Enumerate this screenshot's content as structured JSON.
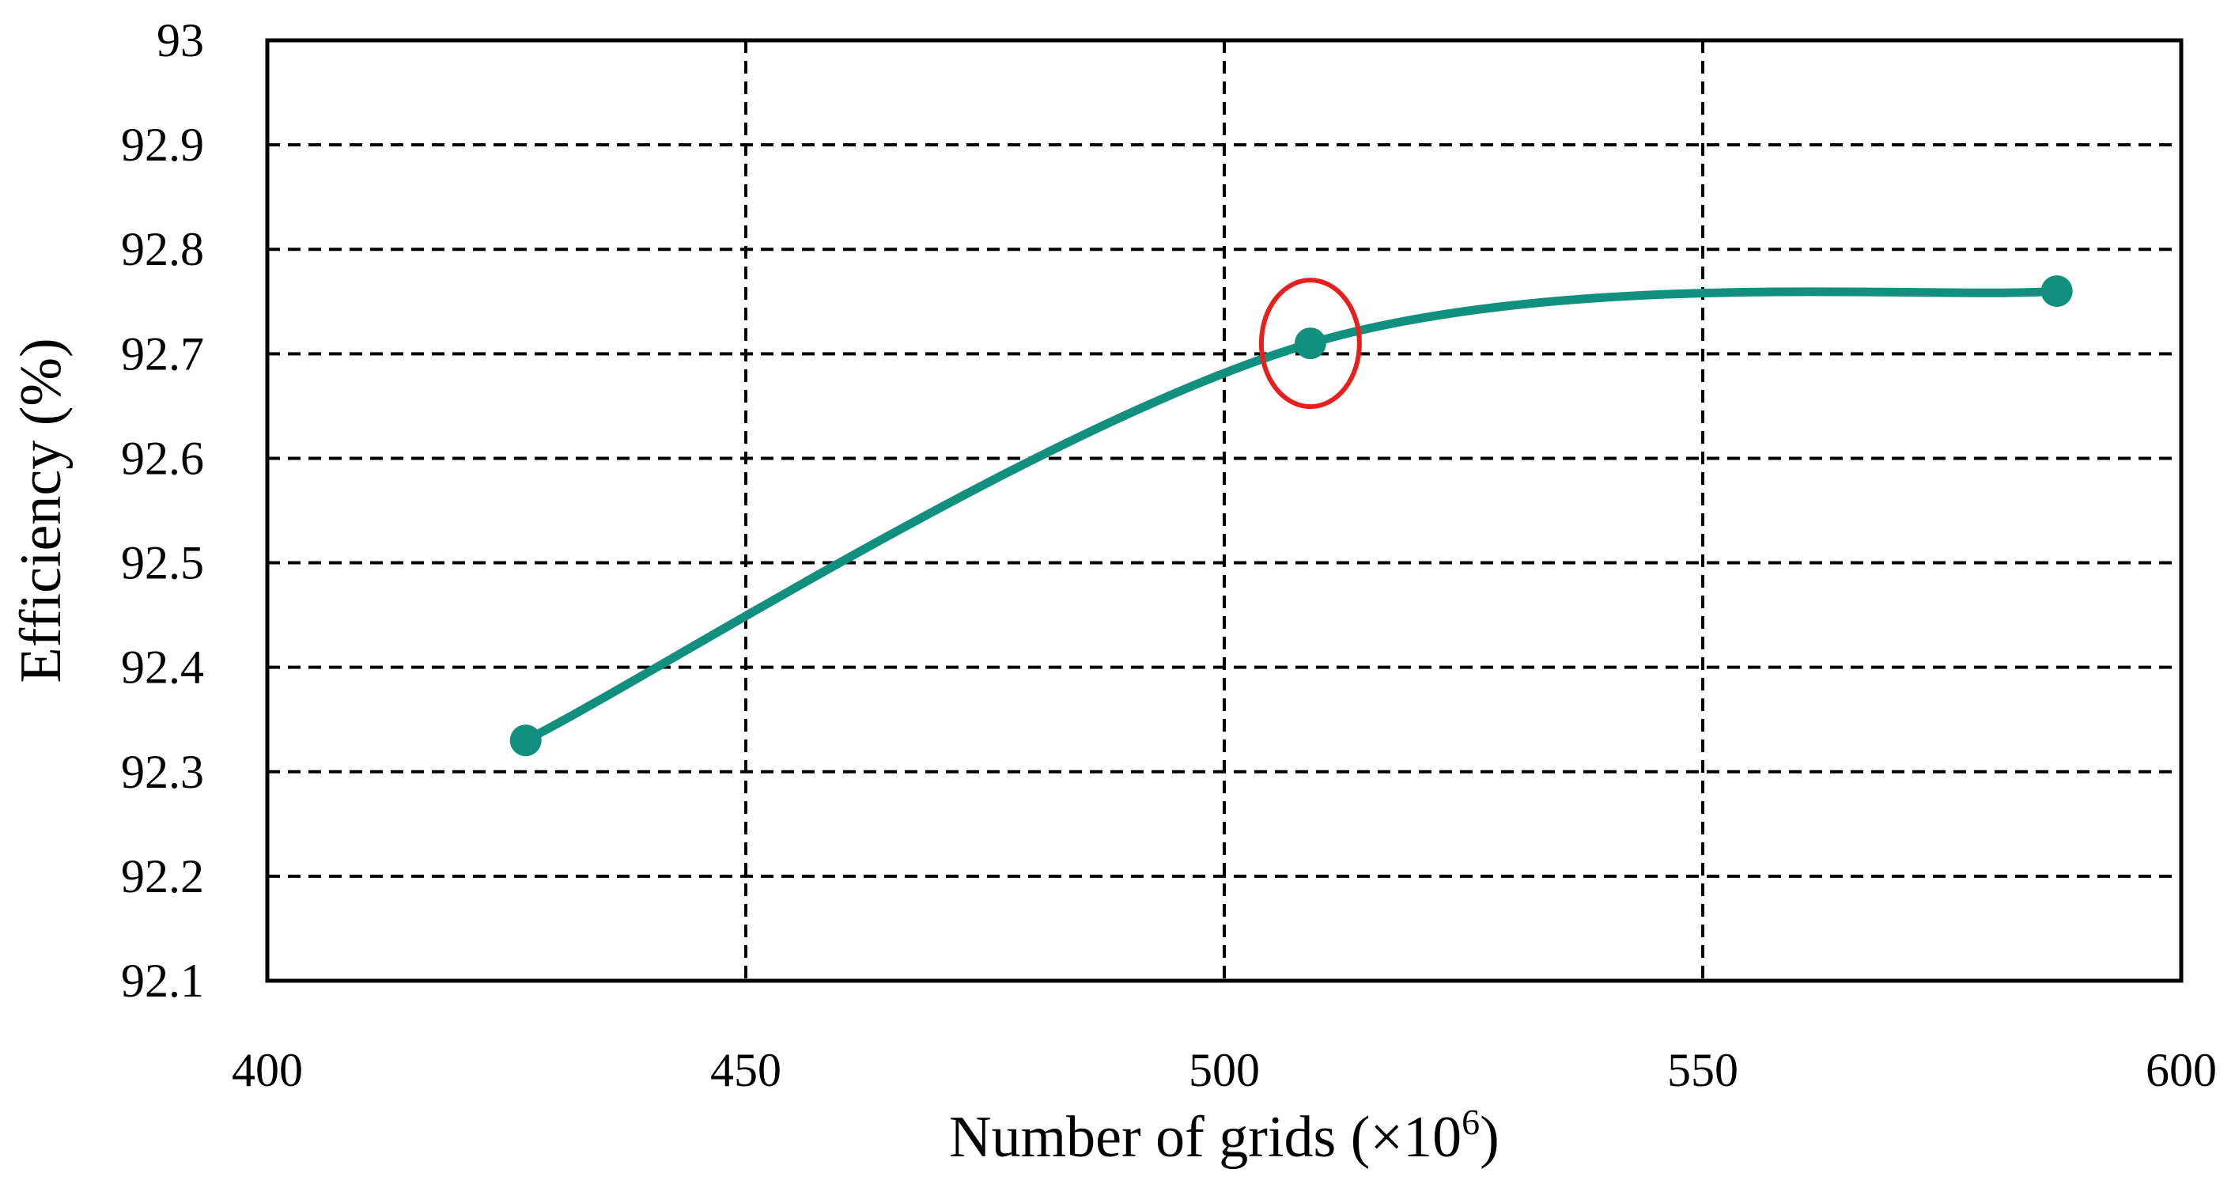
{
  "chart_data": {
    "type": "line",
    "title": "",
    "xlabel": "Number of grids (×10",
    "xlabel_sup": "6",
    "xlabel_close": ")",
    "ylabel": "Efficiency (%)",
    "xlim": [
      400,
      600
    ],
    "ylim": [
      92.1,
      93
    ],
    "x_ticks": [
      400,
      450,
      500,
      550,
      600
    ],
    "x_tick_labels": [
      "400",
      "450",
      "500",
      "550",
      "600"
    ],
    "y_ticks": [
      92.1,
      92.2,
      92.3,
      92.4,
      92.5,
      92.6,
      92.7,
      92.8,
      92.9,
      93
    ],
    "y_tick_labels": [
      "92.1",
      "92.2",
      "92.3",
      "92.4",
      "92.5",
      "92.6",
      "92.7",
      "92.8",
      "92.9",
      "93"
    ],
    "grid": true,
    "smooth": true,
    "series": [
      {
        "color": "#12907f",
        "points": [
          {
            "x": 427,
            "y": 92.33
          },
          {
            "x": 509,
            "y": 92.71
          },
          {
            "x": 587,
            "y": 92.76
          }
        ]
      }
    ],
    "highlighted_point": {
      "x": 509,
      "y": 92.71,
      "color": "#e8201d"
    }
  }
}
